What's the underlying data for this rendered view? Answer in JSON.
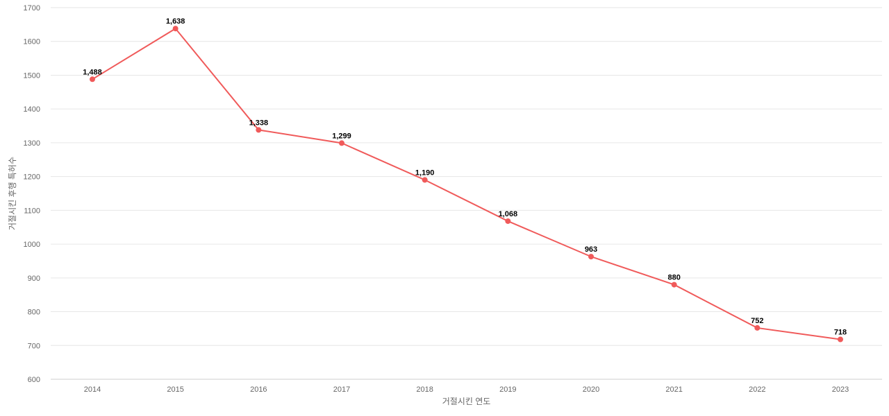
{
  "chart_data": {
    "type": "line",
    "title": "",
    "xlabel": "거절시킨 연도",
    "ylabel": "거절시킨 후행 특허수",
    "x": [
      "2014",
      "2015",
      "2016",
      "2017",
      "2018",
      "2019",
      "2020",
      "2021",
      "2022",
      "2023"
    ],
    "series": [
      {
        "values": [
          1488,
          1638,
          1338,
          1299,
          1190,
          1068,
          963,
          880,
          752,
          718
        ],
        "labels": [
          "1,488",
          "1,638",
          "1,338",
          "1,299",
          "1,190",
          "1,068",
          "963",
          "880",
          "752",
          "718"
        ],
        "color": "#f05a5a"
      }
    ],
    "ylim": [
      600,
      1700
    ],
    "yticks": [
      600,
      700,
      800,
      900,
      1000,
      1100,
      1200,
      1300,
      1400,
      1500,
      1600,
      1700
    ],
    "grid": true,
    "legend": "none"
  }
}
